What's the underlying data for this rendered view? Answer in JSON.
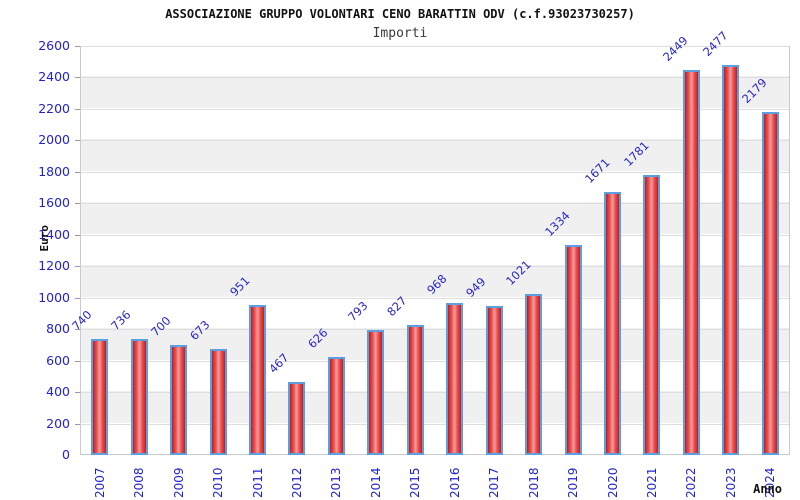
{
  "chart_data": {
    "type": "bar",
    "title": "ASSOCIAZIONE GRUPPO VOLONTARI CENO BARATTIN ODV (c.f.93023730257)",
    "subtitle": "Importi",
    "xlabel": "Anno",
    "ylabel": "Euro",
    "categories": [
      "2007",
      "2008",
      "2009",
      "2010",
      "2011",
      "2012",
      "2013",
      "2014",
      "2015",
      "2016",
      "2017",
      "2018",
      "2019",
      "2020",
      "2021",
      "2022",
      "2023",
      "2024"
    ],
    "values": [
      740,
      736,
      700,
      673,
      951,
      467,
      626,
      793,
      827,
      968,
      949,
      1021,
      1334,
      1671,
      1781,
      2449,
      2477,
      2179
    ],
    "ylim": [
      0,
      2600
    ],
    "ytick_step": 200,
    "grid": true,
    "legend": "none",
    "colors": {
      "bar_fill_edge": "#c31c1c",
      "bar_fill_center": "#f59c9c",
      "bar_border": "#5b9fe0",
      "tick_text": "#2222cc",
      "value_label_text": "#2727c8",
      "band_alt": "#f0f0f0",
      "band_main": "#ffffff",
      "gridline": "#dedede",
      "title_text": "#111111"
    }
  }
}
